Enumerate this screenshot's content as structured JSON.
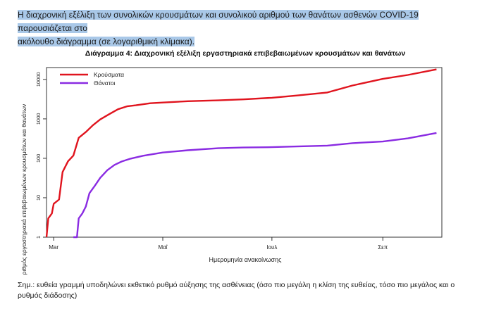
{
  "intro": {
    "line1": "Η διαχρονική εξέλιξη των συνολικών κρουσμάτων και συνολικού αριθμού των θανάτων ασθενών COVID-19 παρουσιάζεται στο",
    "line2": "ακόλουθο διάγραμμα (σε λογαριθμική κλίμακα)."
  },
  "note": "Σημ.: ευθεία γραμμή υποδηλώνει εκθετικό ρυθμό αύξησης της ασθένειας (όσο πιο μεγάλη η κλίση της ευθείας, τόσο πιο μεγάλος και ο ρυθμός διάδοσης)",
  "chart_data": {
    "type": "line",
    "title": "Διάγραμμα 4: Διαχρονική εξέλιξη εργαστηριακά επιβεβαιωμένων κρουσμάτων και θανάτων",
    "xlabel": "Ημερομηνία ανακοίνωσης",
    "ylabel": "Αριθμός εργαστηριακά επιβεβαιωμένων κρουσμάτων και θανάτων",
    "y_scale": "log",
    "ylim": [
      1,
      20000
    ],
    "xlim": [
      "2020-02-26",
      "2020-10-04"
    ],
    "x_ticks": [
      {
        "date": "2020-03-01",
        "label": "Mar"
      },
      {
        "date": "2020-05-01",
        "label": "Μαΐ"
      },
      {
        "date": "2020-07-01",
        "label": "Ιουλ"
      },
      {
        "date": "2020-09-01",
        "label": "Σεπ"
      }
    ],
    "y_ticks": [
      {
        "value": 1,
        "label": "1"
      },
      {
        "value": 10,
        "label": "10"
      },
      {
        "value": 100,
        "label": "100"
      },
      {
        "value": 1000,
        "label": "1000"
      },
      {
        "value": 10000,
        "label": "10000"
      }
    ],
    "legend_position": "top-left",
    "series": [
      {
        "name": "Κρούσματα",
        "color": "#e0141e",
        "points": [
          [
            "2020-02-26",
            1
          ],
          [
            "2020-02-27",
            3
          ],
          [
            "2020-02-29",
            4
          ],
          [
            "2020-03-01",
            7
          ],
          [
            "2020-03-04",
            9
          ],
          [
            "2020-03-06",
            45
          ],
          [
            "2020-03-09",
            84
          ],
          [
            "2020-03-12",
            117
          ],
          [
            "2020-03-15",
            331
          ],
          [
            "2020-03-19",
            464
          ],
          [
            "2020-03-23",
            695
          ],
          [
            "2020-03-27",
            966
          ],
          [
            "2020-04-01",
            1314
          ],
          [
            "2020-04-06",
            1755
          ],
          [
            "2020-04-11",
            2081
          ],
          [
            "2020-04-16",
            2207
          ],
          [
            "2020-04-24",
            2490
          ],
          [
            "2020-05-01",
            2591
          ],
          [
            "2020-05-15",
            2810
          ],
          [
            "2020-06-01",
            2952
          ],
          [
            "2020-06-15",
            3121
          ],
          [
            "2020-07-01",
            3432
          ],
          [
            "2020-07-15",
            3910
          ],
          [
            "2020-08-01",
            4662
          ],
          [
            "2020-08-15",
            7000
          ],
          [
            "2020-09-01",
            10317
          ],
          [
            "2020-09-15",
            13000
          ],
          [
            "2020-10-01",
            18000
          ]
        ]
      },
      {
        "name": "Θάνατοι",
        "color": "#8a2be2",
        "points": [
          [
            "2020-03-12",
            1
          ],
          [
            "2020-03-14",
            1
          ],
          [
            "2020-03-15",
            3
          ],
          [
            "2020-03-17",
            4
          ],
          [
            "2020-03-19",
            6
          ],
          [
            "2020-03-21",
            13
          ],
          [
            "2020-03-24",
            20
          ],
          [
            "2020-03-27",
            32
          ],
          [
            "2020-03-31",
            50
          ],
          [
            "2020-04-04",
            68
          ],
          [
            "2020-04-08",
            83
          ],
          [
            "2020-04-13",
            98
          ],
          [
            "2020-04-20",
            116
          ],
          [
            "2020-05-01",
            140
          ],
          [
            "2020-05-15",
            160
          ],
          [
            "2020-06-01",
            180
          ],
          [
            "2020-06-15",
            188
          ],
          [
            "2020-07-01",
            192
          ],
          [
            "2020-07-15",
            200
          ],
          [
            "2020-08-01",
            210
          ],
          [
            "2020-08-15",
            242
          ],
          [
            "2020-09-01",
            266
          ],
          [
            "2020-09-15",
            320
          ],
          [
            "2020-10-01",
            440
          ]
        ]
      }
    ]
  }
}
